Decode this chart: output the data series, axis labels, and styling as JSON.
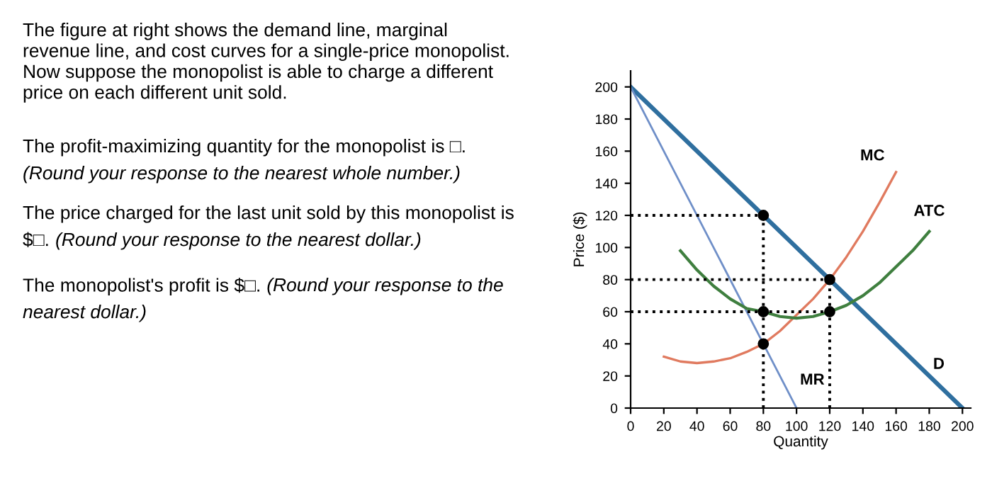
{
  "chart_data": {
    "type": "line",
    "xlabel": "Quantity",
    "ylabel": "Price ($)",
    "xlim": [
      0,
      205
    ],
    "ylim": [
      0,
      210
    ],
    "xticks": [
      0,
      20,
      40,
      60,
      80,
      100,
      120,
      140,
      160,
      180,
      200
    ],
    "yticks": [
      0,
      20,
      40,
      60,
      80,
      100,
      120,
      140,
      160,
      180,
      200
    ],
    "grid": false,
    "legend": false,
    "marker": "none",
    "line_style": "solid",
    "series": [
      {
        "name": "D",
        "color": "#2f6f9f",
        "x": [
          0,
          200
        ],
        "values": [
          200,
          0
        ]
      },
      {
        "name": "MR",
        "color": "#6f8fc8",
        "x": [
          0,
          100
        ],
        "values": [
          200,
          0
        ]
      },
      {
        "name": "MC",
        "color": "#e07a5f",
        "x": [
          20,
          30,
          40,
          50,
          60,
          70,
          80,
          90,
          100,
          110,
          120,
          130,
          140,
          150,
          160
        ],
        "values": [
          32,
          29,
          28,
          29,
          31,
          35,
          40,
          48,
          58,
          68,
          80,
          94,
          110,
          128,
          147
        ]
      },
      {
        "name": "ATC",
        "color": "#3f7f3f",
        "x": [
          30,
          40,
          50,
          60,
          70,
          80,
          90,
          100,
          110,
          120,
          130,
          140,
          150,
          160,
          170,
          180
        ],
        "values": [
          98,
          86,
          76,
          68,
          62,
          60,
          57,
          56,
          57,
          60,
          64,
          70,
          78,
          88,
          98,
          110
        ]
      },
      {
        "color": "#000000",
        "line_style": "dotted",
        "x": [
          0,
          80
        ],
        "values": [
          120,
          120
        ]
      },
      {
        "color": "#000000",
        "line_style": "dotted",
        "x": [
          0,
          120
        ],
        "values": [
          80,
          80
        ]
      },
      {
        "color": "#000000",
        "line_style": "dotted",
        "x": [
          0,
          120
        ],
        "values": [
          60,
          60
        ]
      },
      {
        "color": "#000000",
        "line_style": "dotted",
        "x": [
          80,
          80
        ],
        "values": [
          0,
          120
        ]
      },
      {
        "color": "#000000",
        "line_style": "dotted",
        "x": [
          120,
          120
        ],
        "values": [
          0,
          80
        ]
      },
      {
        "type": "scatter",
        "color": "#000000",
        "marker": "circle",
        "x": [
          80,
          80,
          80,
          120,
          120
        ],
        "values": [
          120,
          60,
          40,
          80,
          60
        ]
      }
    ],
    "annotations": [
      "The figure at right shows the demand line, marginal\nrevenue line, and cost curves for a single-price monopolist.\nNow suppose the monopolist is able to charge a different\nprice on each different unit sold.",
      "The profit-maximizing quantity for the monopolist is □.",
      "(Round your response to the nearest whole number.)",
      "The price charged for the last unit sold by this monopolist is",
      "$□.",
      "(Round your response to the nearest dollar.)",
      "The monopolist's profit is $□.",
      "(Round your response to the",
      "nearest dollar.)"
    ]
  }
}
